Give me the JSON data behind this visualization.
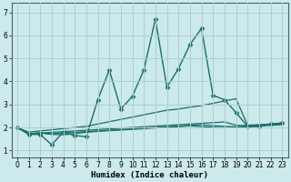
{
  "xlabel": "Humidex (Indice chaleur)",
  "bg_color": "#cce9eb",
  "grid_color": "#aacfd2",
  "line_color": "#1a6e6a",
  "xlim": [
    -0.5,
    23.5
  ],
  "ylim": [
    0.7,
    7.4
  ],
  "xticks": [
    0,
    1,
    2,
    3,
    4,
    5,
    6,
    7,
    8,
    9,
    10,
    11,
    12,
    13,
    14,
    15,
    16,
    17,
    18,
    19,
    20,
    21,
    22,
    23
  ],
  "yticks": [
    1,
    2,
    3,
    4,
    5,
    6,
    7
  ],
  "lines": [
    {
      "x": [
        0,
        1,
        2,
        3,
        4,
        5,
        6,
        7,
        8,
        9,
        10,
        11,
        12,
        13,
        14,
        15,
        16,
        17,
        18,
        19,
        20,
        21,
        22,
        23
      ],
      "y": [
        2.0,
        1.7,
        1.7,
        1.25,
        1.8,
        1.65,
        1.6,
        3.2,
        4.5,
        2.8,
        3.35,
        4.5,
        6.7,
        3.75,
        4.55,
        5.6,
        6.3,
        3.4,
        3.2,
        2.65,
        2.05,
        2.05,
        2.15,
        2.2
      ],
      "marker": "D",
      "markersize": 2.5,
      "linewidth": 1.0
    },
    {
      "x": [
        0,
        1,
        2,
        3,
        4,
        5,
        6,
        7,
        8,
        9,
        10,
        11,
        12,
        13,
        14,
        15,
        16,
        17,
        18,
        19,
        20,
        21,
        22,
        23
      ],
      "y": [
        2.0,
        1.8,
        1.85,
        1.9,
        1.95,
        2.0,
        2.05,
        2.15,
        2.25,
        2.35,
        2.45,
        2.55,
        2.65,
        2.75,
        2.8,
        2.88,
        2.95,
        3.05,
        3.15,
        3.25,
        2.1,
        2.12,
        2.15,
        2.18
      ],
      "marker": null,
      "markersize": 0,
      "linewidth": 0.9
    },
    {
      "x": [
        0,
        1,
        2,
        3,
        4,
        5,
        6,
        7,
        8,
        9,
        10,
        11,
        12,
        13,
        14,
        15,
        16,
        17,
        18,
        19,
        20,
        21,
        22,
        23
      ],
      "y": [
        2.0,
        1.73,
        1.76,
        1.79,
        1.82,
        1.85,
        1.88,
        1.91,
        1.94,
        1.97,
        2.0,
        2.03,
        2.06,
        2.09,
        2.12,
        2.15,
        2.18,
        2.21,
        2.24,
        2.1,
        2.08,
        2.11,
        2.14,
        2.17
      ],
      "marker": null,
      "markersize": 0,
      "linewidth": 0.9
    },
    {
      "x": [
        0,
        1,
        2,
        3,
        4,
        5,
        6,
        7,
        8,
        9,
        10,
        11,
        12,
        13,
        14,
        15,
        16,
        17,
        18,
        19,
        20,
        21,
        22,
        23
      ],
      "y": [
        2.0,
        1.73,
        1.76,
        1.73,
        1.76,
        1.79,
        1.82,
        1.85,
        1.88,
        1.91,
        1.94,
        1.97,
        2.0,
        2.03,
        2.06,
        2.09,
        2.12,
        2.08,
        2.05,
        2.03,
        2.06,
        2.09,
        2.12,
        2.15
      ],
      "marker": null,
      "markersize": 0,
      "linewidth": 0.9
    },
    {
      "x": [
        0,
        1,
        2,
        3,
        4,
        5,
        6,
        7,
        8,
        9,
        10,
        11,
        12,
        13,
        14,
        15,
        16,
        17,
        18,
        19,
        20,
        21,
        22,
        23
      ],
      "y": [
        2.0,
        1.73,
        1.76,
        1.7,
        1.68,
        1.73,
        1.79,
        1.83,
        1.86,
        1.89,
        1.92,
        1.95,
        1.98,
        2.01,
        2.04,
        2.07,
        2.04,
        2.01,
        1.99,
        2.0,
        2.03,
        2.06,
        2.09,
        2.12
      ],
      "marker": null,
      "markersize": 0,
      "linewidth": 0.9
    }
  ]
}
